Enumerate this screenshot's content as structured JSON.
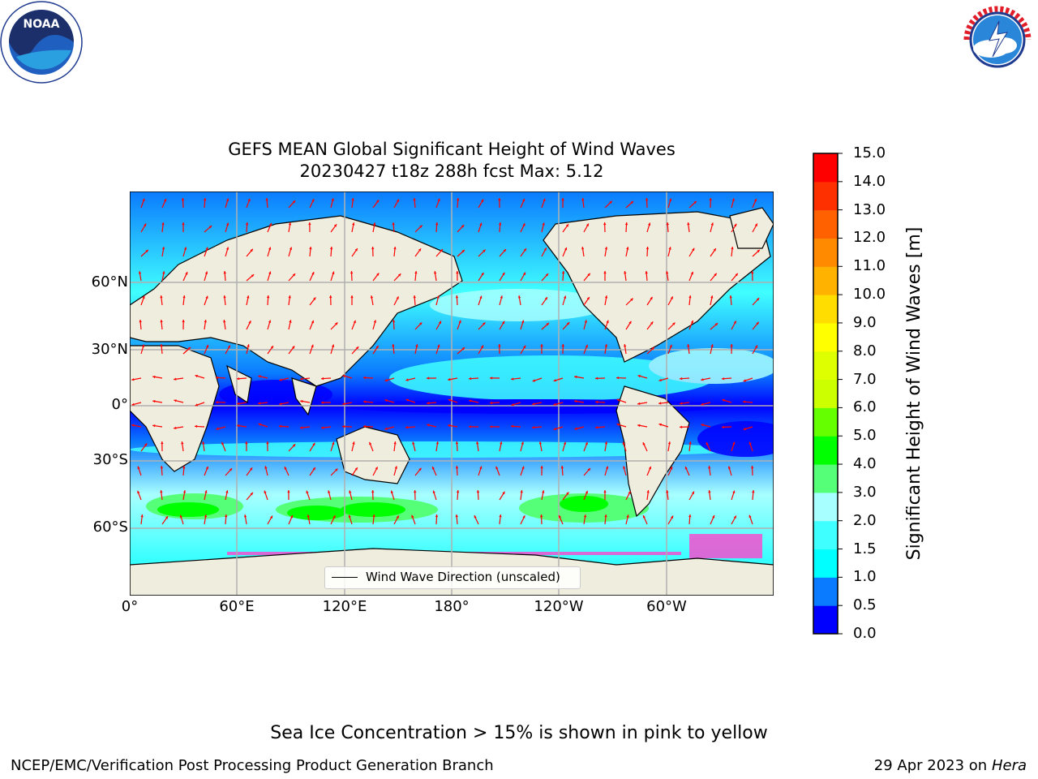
{
  "header": {
    "title_line1": "GEFS MEAN Global Significant Height of Wind Waves",
    "title_line2": "20230427 t18z 288h fcst   Max: 5.12"
  },
  "logos": {
    "left": {
      "name": "NOAA",
      "ring_text": "NATIONAL OCEANIC AND ATMOSPHERIC ADMINISTRATION · U.S. DEPARTMENT OF COMMERCE"
    },
    "right": {
      "name": "NATIONAL WEATHER SERVICE"
    }
  },
  "map": {
    "projection": "cylindrical, centered 180°",
    "lat_ticks": [
      "60°N",
      "30°N",
      "0°",
      "30°S",
      "60°S"
    ],
    "lon_ticks": [
      "0°",
      "60°E",
      "120°E",
      "180°",
      "120°W",
      "60°W"
    ],
    "grid": true,
    "legend_label": "Wind Wave Direction (unscaled)",
    "arrow_color": "#ff0000",
    "land_color": "#efedde",
    "ice_color": "#ff44cc"
  },
  "colorbar": {
    "label": "Significant Height of Wind Waves [m]",
    "ticks": [
      "0.0",
      "0.5",
      "1.0",
      "1.5",
      "2.0",
      "3.0",
      "4.0",
      "5.0",
      "6.0",
      "7.0",
      "8.0",
      "9.0",
      "10.0",
      "11.0",
      "12.0",
      "13.0",
      "14.0",
      "15.0"
    ],
    "colors": [
      "#0000ff",
      "#0a7bff",
      "#00ffff",
      "#40ffff",
      "#a8ffff",
      "#55ff77",
      "#00ff00",
      "#66ff00",
      "#ccff00",
      "#ddff00",
      "#ffff00",
      "#ffdd00",
      "#ffb300",
      "#ff8a00",
      "#ff6000",
      "#ff3000",
      "#ff0000"
    ]
  },
  "footer": {
    "note": "Sea Ice Concentration > 15% is shown in pink to yellow",
    "left": "NCEP/EMC/Verification Post Processing Product Generation Branch",
    "right_date": "29 Apr 2023 on ",
    "right_host": "Hera"
  }
}
